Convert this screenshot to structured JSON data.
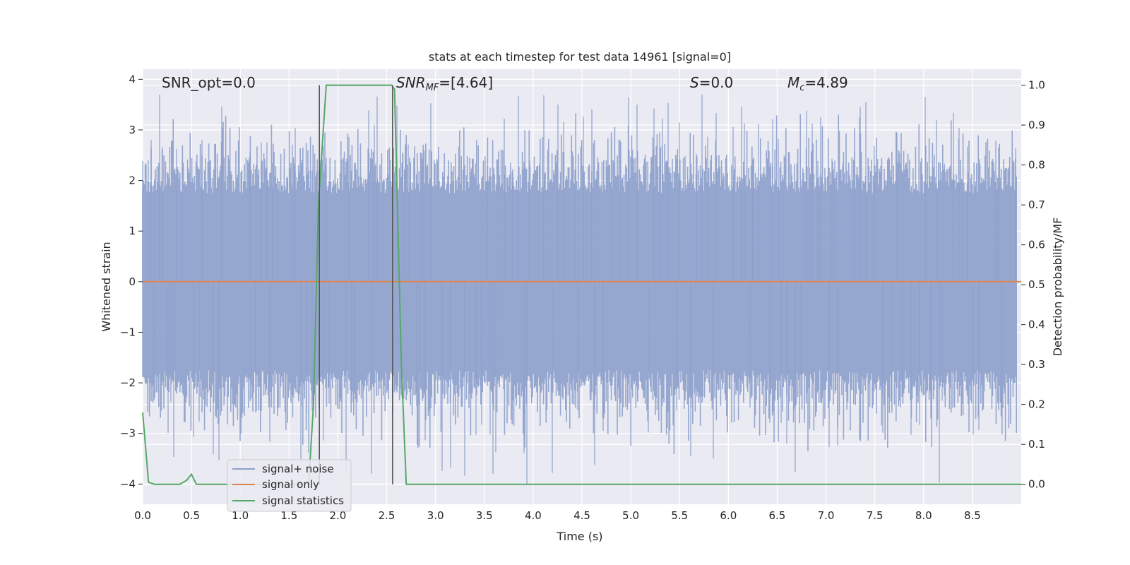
{
  "chart_data": {
    "type": "line",
    "title": "stats at each timestep for test data 14961 [signal=0]",
    "xlabel": "Time (s)",
    "ylabel_left": "Whitened strain",
    "ylabel_right": "Detection probability/MF",
    "xlim": [
      0.0,
      9.0
    ],
    "ylim_left": [
      -4.4,
      4.2
    ],
    "ylim_right": [
      -0.05,
      1.04
    ],
    "xticks": [
      0.0,
      0.5,
      1.0,
      1.5,
      2.0,
      2.5,
      3.0,
      3.5,
      4.0,
      4.5,
      5.0,
      5.5,
      6.0,
      6.5,
      7.0,
      7.5,
      8.0,
      8.5
    ],
    "xtick_labels": [
      "0.0",
      "0.5",
      "1.0",
      "1.5",
      "2.0",
      "2.5",
      "3.0",
      "3.5",
      "4.0",
      "4.5",
      "5.0",
      "5.5",
      "6.0",
      "6.5",
      "7.0",
      "7.5",
      "8.0",
      "8.5"
    ],
    "yticks_left": [
      -4,
      -3,
      -2,
      -1,
      0,
      1,
      2,
      3,
      4
    ],
    "ytick_labels_left": [
      "−4",
      "−3",
      "−2",
      "−1",
      "0",
      "1",
      "2",
      "3",
      "4"
    ],
    "yticks_right": [
      0.0,
      0.1,
      0.2,
      0.3,
      0.4,
      0.5,
      0.6,
      0.7,
      0.8,
      0.9,
      1.0
    ],
    "ytick_labels_right": [
      "0.0",
      "0.1",
      "0.2",
      "0.3",
      "0.4",
      "0.5",
      "0.6",
      "0.7",
      "0.8",
      "0.9",
      "1.0"
    ],
    "grid": true,
    "legend_position": "lower-left",
    "annotations": [
      {
        "id": "snr-opt",
        "text": "SNR_opt=0.0"
      },
      {
        "id": "snr-mf",
        "text": "SNR_MF=[4.64]"
      },
      {
        "id": "s",
        "text": "S=0.0"
      },
      {
        "id": "mc",
        "text": "M_c=4.89"
      }
    ],
    "vertical_markers": [
      1.81,
      2.56
    ],
    "noise_envelope": {
      "name": "signal+ noise",
      "color": "#8da0cb",
      "duration_s": 9.0,
      "approx_upper_range": [
        1.4,
        3.8
      ],
      "approx_lower_range": [
        -4.0,
        -1.0
      ]
    },
    "series": [
      {
        "name": "signal only",
        "color": "#dd8452",
        "axis": "left",
        "x": [
          0.0,
          9.0
        ],
        "y": [
          0.0,
          0.0
        ]
      },
      {
        "name": "signal statistics",
        "color": "#55a868",
        "axis": "right",
        "x": [
          0.0,
          0.06,
          0.12,
          0.38,
          0.45,
          0.5,
          0.55,
          1.7,
          1.75,
          1.8,
          1.88,
          2.55,
          2.58,
          2.65,
          2.7,
          9.0
        ],
        "y": [
          0.18,
          0.005,
          0.0,
          0.0,
          0.01,
          0.025,
          0.0,
          0.0,
          0.2,
          0.7,
          1.0,
          1.0,
          0.99,
          0.3,
          0.0,
          0.0
        ]
      }
    ],
    "legend": {
      "entries": [
        {
          "label": "signal+ noise",
          "color": "#8da0cb"
        },
        {
          "label": "signal only",
          "color": "#dd8452"
        },
        {
          "label": "signal statistics",
          "color": "#55a868"
        }
      ]
    }
  }
}
